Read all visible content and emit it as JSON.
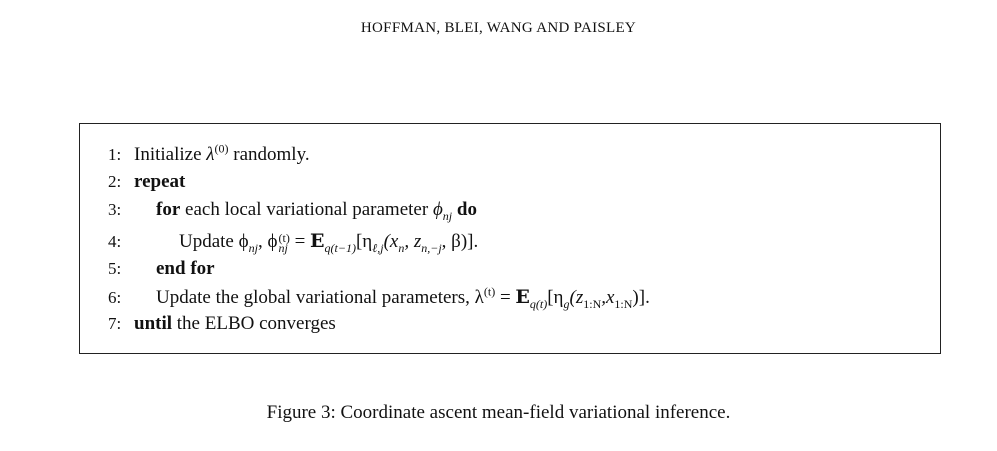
{
  "header": {
    "authors": "HOFFMAN, BLEI, WANG AND PAISLEY"
  },
  "algorithm": {
    "lines": [
      {
        "num": "1:",
        "pre": "Initialize ",
        "sym": "λ",
        "sup": "(0)",
        "post": " randomly."
      },
      {
        "num": "2:",
        "kw": "repeat"
      },
      {
        "num": "3:",
        "kw": "for",
        "text": " each local variational parameter ",
        "sym": "ϕ",
        "sub": "nj",
        "kw2": " do"
      },
      {
        "num": "4:",
        "text": "Update ϕ",
        "sub": "nj",
        "mid": ", ϕ",
        "sup": "(t)",
        "sub2": "nj",
        "rhs": " = ",
        "E": "E",
        "Esub": "q(t−1)",
        "body": "[η",
        "bodysub": "ℓ,j",
        "args": "(x",
        "a1": "n",
        "a2": ", z",
        "a3": "n,−j",
        "a4": ", β)]."
      },
      {
        "num": "5:",
        "kw": "end for"
      },
      {
        "num": "6:",
        "text": "Update the global variational parameters, λ",
        "sup": "(t)",
        "rhs": " = ",
        "E": "E",
        "Esub": "q(t)",
        "body": "[η",
        "bodysub": "g",
        "args": "(z",
        "a1": "1:N",
        "a2": ",x",
        "a3": "1:N",
        "a4": ")]."
      },
      {
        "num": "7:",
        "kw": "until",
        "text": " the ELBO converges"
      }
    ]
  },
  "caption": "Figure 3: Coordinate ascent mean-field variational inference."
}
